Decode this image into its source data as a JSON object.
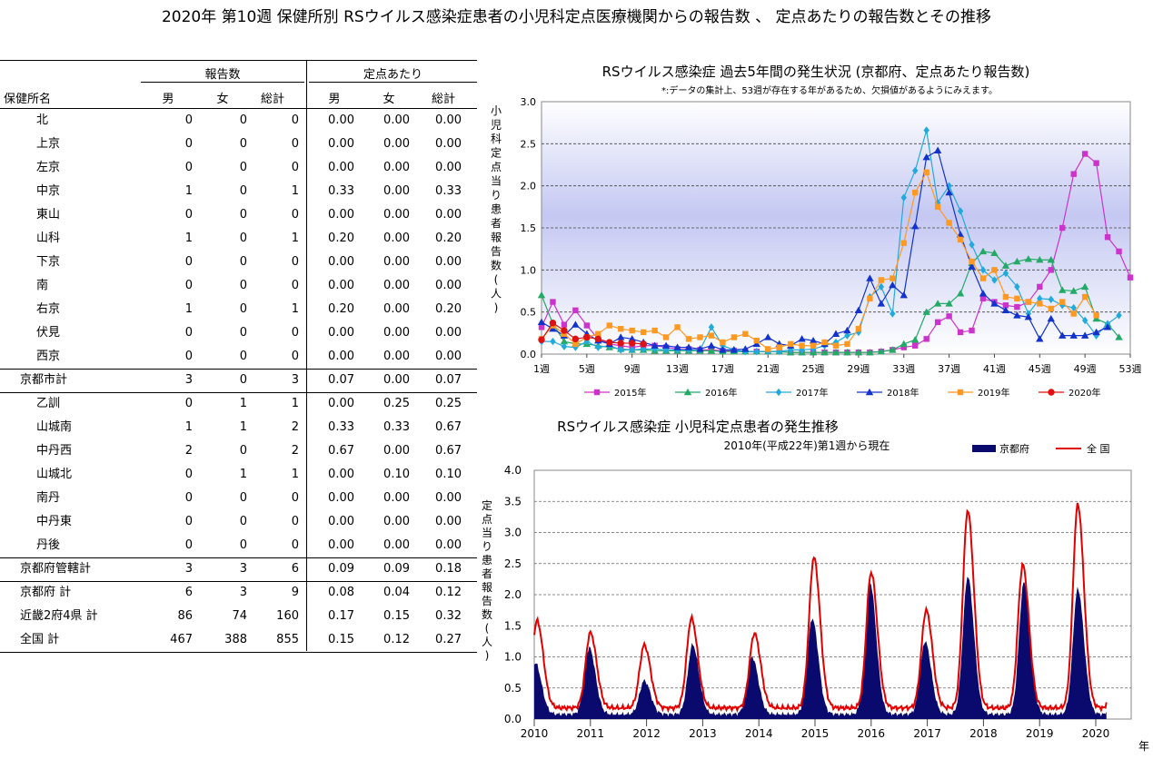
{
  "page_title": "2020年 第10週 保健所別 RSウイルス感染症患者の小児科定点医療機関からの報告数 、 定点あたりの報告数とその推移",
  "table": {
    "group_headers": [
      "報告数",
      "定点あたり"
    ],
    "name_header": "保健所名",
    "sub_headers": [
      "男",
      "女",
      "総計",
      "男",
      "女",
      "総計"
    ],
    "rows": [
      {
        "name": "北",
        "values": [
          "0",
          "0",
          "0",
          "0.00",
          "0.00",
          "0.00"
        ]
      },
      {
        "name": "上京",
        "values": [
          "0",
          "0",
          "0",
          "0.00",
          "0.00",
          "0.00"
        ]
      },
      {
        "name": "左京",
        "values": [
          "0",
          "0",
          "0",
          "0.00",
          "0.00",
          "0.00"
        ]
      },
      {
        "name": "中京",
        "values": [
          "1",
          "0",
          "1",
          "0.33",
          "0.00",
          "0.33"
        ]
      },
      {
        "name": "東山",
        "values": [
          "0",
          "0",
          "0",
          "0.00",
          "0.00",
          "0.00"
        ]
      },
      {
        "name": "山科",
        "values": [
          "1",
          "0",
          "1",
          "0.20",
          "0.00",
          "0.20"
        ]
      },
      {
        "name": "下京",
        "values": [
          "0",
          "0",
          "0",
          "0.00",
          "0.00",
          "0.00"
        ]
      },
      {
        "name": "南",
        "values": [
          "0",
          "0",
          "0",
          "0.00",
          "0.00",
          "0.00"
        ]
      },
      {
        "name": "右京",
        "values": [
          "1",
          "0",
          "1",
          "0.20",
          "0.00",
          "0.20"
        ]
      },
      {
        "name": "伏見",
        "values": [
          "0",
          "0",
          "0",
          "0.00",
          "0.00",
          "0.00"
        ]
      },
      {
        "name": "西京",
        "values": [
          "0",
          "0",
          "0",
          "0.00",
          "0.00",
          "0.00"
        ]
      },
      {
        "name": "京都市計",
        "values": [
          "3",
          "0",
          "3",
          "0.07",
          "0.00",
          "0.07"
        ]
      },
      {
        "name": "乙訓",
        "values": [
          "0",
          "1",
          "1",
          "0.00",
          "0.25",
          "0.25"
        ]
      },
      {
        "name": "山城南",
        "values": [
          "1",
          "1",
          "2",
          "0.33",
          "0.33",
          "0.67"
        ]
      },
      {
        "name": "中丹西",
        "values": [
          "2",
          "0",
          "2",
          "0.67",
          "0.00",
          "0.67"
        ]
      },
      {
        "name": "山城北",
        "values": [
          "0",
          "1",
          "1",
          "0.00",
          "0.10",
          "0.10"
        ]
      },
      {
        "name": "南丹",
        "values": [
          "0",
          "0",
          "0",
          "0.00",
          "0.00",
          "0.00"
        ]
      },
      {
        "name": "中丹東",
        "values": [
          "0",
          "0",
          "0",
          "0.00",
          "0.00",
          "0.00"
        ]
      },
      {
        "name": "丹後",
        "values": [
          "0",
          "0",
          "0",
          "0.00",
          "0.00",
          "0.00"
        ]
      },
      {
        "name": "京都府管轄計",
        "values": [
          "3",
          "3",
          "6",
          "0.09",
          "0.09",
          "0.18"
        ]
      },
      {
        "name": "京都府 計",
        "values": [
          "6",
          "3",
          "9",
          "0.08",
          "0.04",
          "0.12"
        ]
      },
      {
        "name": "近畿2府4県 計",
        "values": [
          "86",
          "74",
          "160",
          "0.17",
          "0.15",
          "0.32"
        ]
      },
      {
        "name": "全国 計",
        "values": [
          "467",
          "388",
          "855",
          "0.15",
          "0.12",
          "0.27"
        ]
      }
    ]
  },
  "chart_data": [
    {
      "type": "line",
      "title": "RSウイルス感染症 過去5年間の発生状況 (京都府、定点あたり報告数)",
      "subtitle": "*:データの集計上、53週が存在する年があるため、欠損値があるようにみえます。",
      "ylabel": "小児科定点当り患者報告数(人)",
      "ylim": [
        0,
        3.0
      ],
      "yticks": [
        "0.0",
        "0.5",
        "1.0",
        "1.5",
        "2.0",
        "2.5",
        "3.0"
      ],
      "xtick_labels": [
        "1週",
        "5週",
        "9週",
        "13週",
        "17週",
        "21週",
        "25週",
        "29週",
        "33週",
        "37週",
        "41週",
        "45週",
        "49週",
        "53週"
      ],
      "xtick_weeks": [
        1,
        5,
        9,
        13,
        17,
        21,
        25,
        29,
        33,
        37,
        41,
        45,
        49,
        53
      ],
      "grid": true,
      "legend_position": "bottom",
      "series": [
        {
          "name": "2015年",
          "color": "#cc33cc",
          "marker": "square",
          "values": [
            0.32,
            0.62,
            0.35,
            0.52,
            0.34,
            0.18,
            0.12,
            0.1,
            0.08,
            0.1,
            0.1,
            0.08,
            0.06,
            0.06,
            0.05,
            0.05,
            0.04,
            0.04,
            0.03,
            0.03,
            0.03,
            0.03,
            0.02,
            0.02,
            0.02,
            0.02,
            0.02,
            0.02,
            0.02,
            0.02,
            0.03,
            0.05,
            0.08,
            0.1,
            0.18,
            0.38,
            0.45,
            0.26,
            0.28,
            0.66,
            0.62,
            0.58,
            0.56,
            0.62,
            0.8,
            1.0,
            1.5,
            2.14,
            2.38,
            2.27,
            1.39,
            1.22,
            0.91
          ]
        },
        {
          "name": "2016年",
          "color": "#22aa66",
          "marker": "triangle",
          "values": [
            0.7,
            0.36,
            0.15,
            0.12,
            0.12,
            0.1,
            0.08,
            0.06,
            0.05,
            0.05,
            0.04,
            0.04,
            0.04,
            0.04,
            0.04,
            0.04,
            0.03,
            0.03,
            0.03,
            0.03,
            0.03,
            0.03,
            0.02,
            0.02,
            0.02,
            0.02,
            0.02,
            0.02,
            0.02,
            0.02,
            0.03,
            0.05,
            0.12,
            0.17,
            0.5,
            0.6,
            0.6,
            0.72,
            1.08,
            1.22,
            1.2,
            1.05,
            1.1,
            1.13,
            1.12,
            1.12,
            0.76,
            0.75,
            0.8,
            0.42,
            0.36,
            0.2
          ]
        },
        {
          "name": "2017年",
          "color": "#22aadd",
          "marker": "diamond",
          "values": [
            0.15,
            0.15,
            0.09,
            0.08,
            0.15,
            0.08,
            0.1,
            0.05,
            0.05,
            0.06,
            0.06,
            0.05,
            0.05,
            0.05,
            0.05,
            0.32,
            0.1,
            0.05,
            0.03,
            0.03,
            0.03,
            0.03,
            0.05,
            0.05,
            0.06,
            0.1,
            0.14,
            0.22,
            0.26,
            0.68,
            0.8,
            0.48,
            1.86,
            2.18,
            2.66,
            1.8,
            2.0,
            1.7,
            1.3,
            1.0,
            0.88,
            0.96,
            0.8,
            0.48,
            0.66,
            0.65,
            0.58,
            0.55,
            0.4,
            0.22,
            0.36,
            0.46
          ]
        },
        {
          "name": "2018年",
          "color": "#1133cc",
          "marker": "triangle",
          "values": [
            0.38,
            0.3,
            0.22,
            0.35,
            0.24,
            0.16,
            0.12,
            0.2,
            0.18,
            0.14,
            0.1,
            0.1,
            0.08,
            0.08,
            0.06,
            0.1,
            0.05,
            0.05,
            0.06,
            0.12,
            0.2,
            0.12,
            0.1,
            0.18,
            0.16,
            0.12,
            0.24,
            0.28,
            0.52,
            0.9,
            0.6,
            0.82,
            0.7,
            1.52,
            2.34,
            2.42,
            1.92,
            1.42,
            1.04,
            0.72,
            0.6,
            0.52,
            0.46,
            0.44,
            0.18,
            0.42,
            0.22,
            0.22,
            0.22,
            0.26,
            0.32
          ]
        },
        {
          "name": "2019年",
          "color": "#ff9922",
          "marker": "square",
          "values": [
            0.18,
            0.34,
            0.24,
            0.12,
            0.2,
            0.24,
            0.34,
            0.3,
            0.28,
            0.26,
            0.28,
            0.2,
            0.32,
            0.18,
            0.2,
            0.22,
            0.14,
            0.2,
            0.24,
            0.16,
            0.06,
            0.08,
            0.12,
            0.1,
            0.1,
            0.14,
            0.1,
            0.12,
            0.3,
            0.66,
            0.88,
            0.9,
            1.32,
            1.92,
            2.16,
            1.75,
            1.56,
            1.36,
            1.1,
            0.9,
            1.0,
            0.68,
            0.66,
            0.62,
            0.6,
            0.54,
            0.62,
            0.48,
            0.68,
            0.46
          ]
        },
        {
          "name": "2020年",
          "color": "#dd1111",
          "marker": "circle",
          "values": [
            0.17,
            0.37,
            0.28,
            0.18,
            0.2,
            0.18,
            0.14,
            0.13,
            0.13,
            0.12
          ]
        }
      ]
    },
    {
      "type": "area",
      "title": "RSウイルス感染症 小児科定点患者の発生推移",
      "subtitle": "2010年(平成22年)第1週から現在",
      "ylabel": "定点当り患者報告数(人)",
      "xlabel": "年",
      "ylim": [
        0,
        4.0
      ],
      "yticks": [
        "0.0",
        "0.5",
        "1.0",
        "1.5",
        "2.0",
        "2.5",
        "3.0",
        "3.5",
        "4.0"
      ],
      "xtick_labels": [
        "2010",
        "2011",
        "2012",
        "2013",
        "2014",
        "2015",
        "2016",
        "2017",
        "2018",
        "2019",
        "2020"
      ],
      "grid": true,
      "legend_position": "top-right",
      "series": [
        {
          "name": "京都府",
          "color": "#0a0a6e",
          "style": "filled-bars",
          "peaks": [
            {
              "x": 2010.02,
              "y": 0.9
            },
            {
              "x": 2010.98,
              "y": 1.15
            },
            {
              "x": 2011.96,
              "y": 0.62
            },
            {
              "x": 2012.82,
              "y": 1.2
            },
            {
              "x": 2013.88,
              "y": 1.0
            },
            {
              "x": 2014.95,
              "y": 1.62
            },
            {
              "x": 2015.98,
              "y": 2.2
            },
            {
              "x": 2016.96,
              "y": 1.25
            },
            {
              "x": 2017.72,
              "y": 2.3
            },
            {
              "x": 2018.72,
              "y": 2.2
            },
            {
              "x": 2019.68,
              "y": 2.1
            }
          ]
        },
        {
          "name": "全 国",
          "color": "#e00000",
          "style": "line",
          "peaks": [
            {
              "x": 2010.05,
              "y": 1.58
            },
            {
              "x": 2011.0,
              "y": 1.39
            },
            {
              "x": 2011.96,
              "y": 1.19
            },
            {
              "x": 2012.8,
              "y": 1.62
            },
            {
              "x": 2013.92,
              "y": 1.38
            },
            {
              "x": 2014.98,
              "y": 2.6
            },
            {
              "x": 2016.0,
              "y": 2.36
            },
            {
              "x": 2016.98,
              "y": 1.75
            },
            {
              "x": 2017.72,
              "y": 3.36
            },
            {
              "x": 2018.7,
              "y": 2.48
            },
            {
              "x": 2019.68,
              "y": 3.45
            }
          ],
          "end_value": 0.27
        }
      ]
    }
  ]
}
